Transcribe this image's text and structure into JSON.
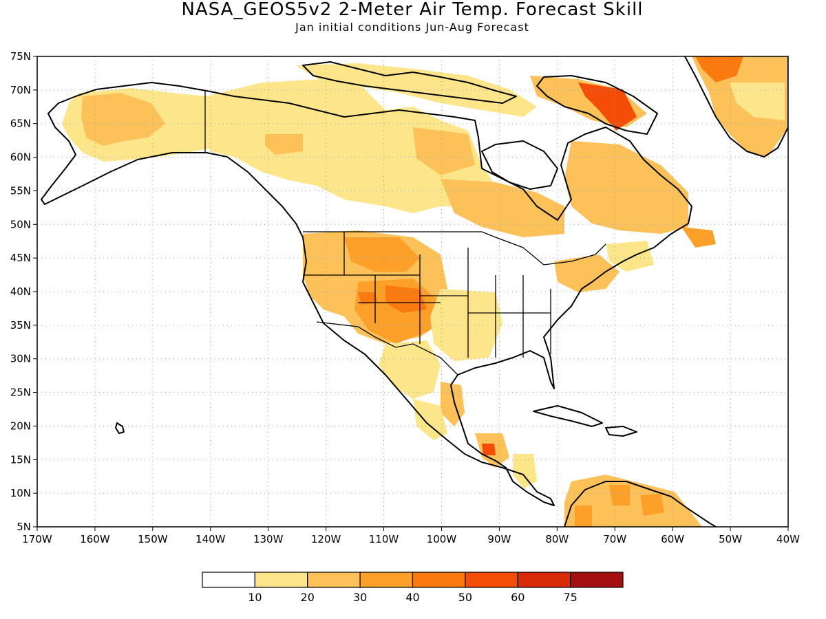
{
  "title": "NASA_GEOS5v2 2-Meter Air Temp. Forecast Skill",
  "subtitle": "Jan initial conditions  Jun-Aug Forecast",
  "map": {
    "lon_range": [
      -170,
      -40
    ],
    "lat_range": [
      5,
      75
    ],
    "lon_tick_labels": [
      "170W",
      "160W",
      "150W",
      "140W",
      "130W",
      "120W",
      "110W",
      "100W",
      "90W",
      "80W",
      "70W",
      "60W",
      "50W",
      "40W"
    ],
    "lat_tick_labels": [
      "5N",
      "10N",
      "15N",
      "20N",
      "25N",
      "30N",
      "35N",
      "40N",
      "45N",
      "50N",
      "55N",
      "60N",
      "65N",
      "70N",
      "75N"
    ]
  },
  "colorbar": {
    "colors": [
      "#ffffff",
      "#fde68a",
      "#fcc159",
      "#fca02a",
      "#fb7a10",
      "#f54c08",
      "#d92a06",
      "#a50f0f"
    ],
    "labels": [
      "10",
      "20",
      "30",
      "40",
      "50",
      "60",
      "75"
    ]
  }
}
